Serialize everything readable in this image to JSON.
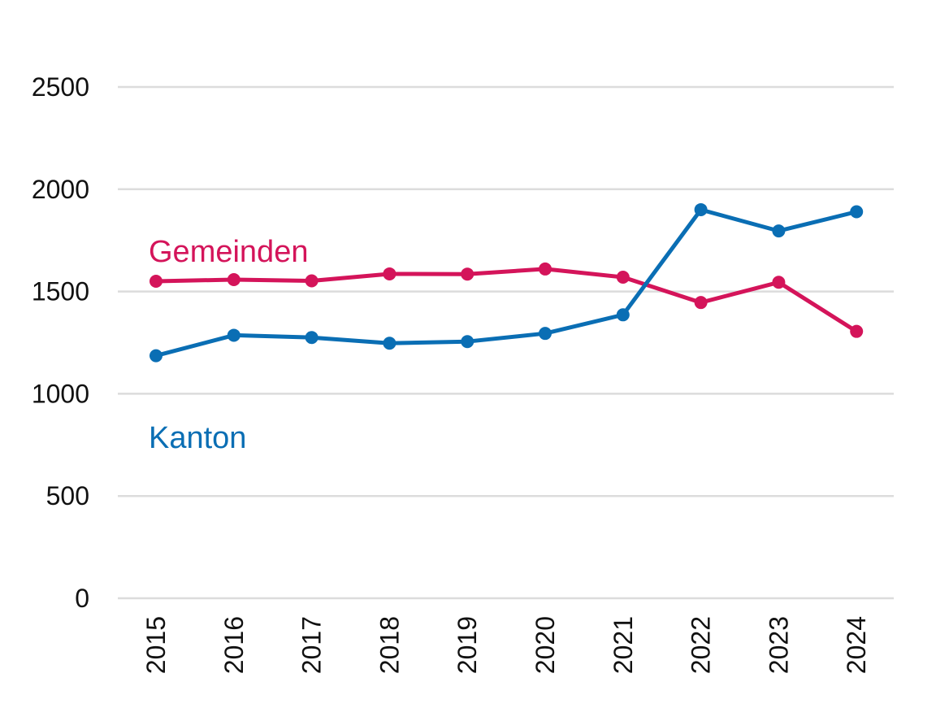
{
  "chart_data": {
    "type": "line",
    "title": "",
    "xlabel": "",
    "ylabel": "",
    "categories": [
      "2015",
      "2016",
      "2017",
      "2018",
      "2019",
      "2020",
      "2021",
      "2022",
      "2023",
      "2024"
    ],
    "ylim": [
      0,
      2500
    ],
    "yticks": [
      0,
      500,
      1000,
      1500,
      2000,
      2500
    ],
    "grid": true,
    "legend": "inline labels",
    "series": [
      {
        "name": "Gemeinden",
        "color": "#d4145a",
        "values": [
          1550,
          1558,
          1552,
          1586,
          1585,
          1610,
          1570,
          1446,
          1545,
          1305
        ]
      },
      {
        "name": "Kanton",
        "color": "#0a6eb4",
        "values": [
          1186,
          1286,
          1275,
          1247,
          1255,
          1295,
          1386,
          1900,
          1796,
          1890
        ]
      }
    ]
  }
}
